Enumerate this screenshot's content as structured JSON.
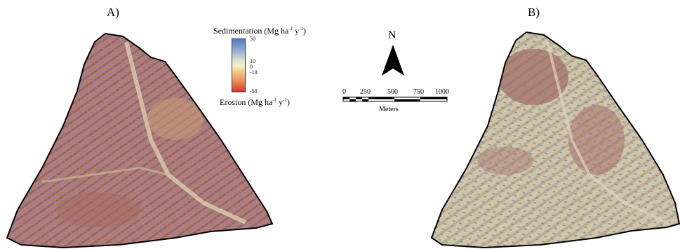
{
  "panels": {
    "a_label": "A)",
    "b_label": "B)"
  },
  "legend": {
    "top_title": "Sedimentation (Mg ha",
    "bottom_title": "Erosion (Mg ha",
    "unit_ha_exp": "-1",
    "unit_y": " y",
    "unit_y_exp": "-1",
    "unit_close": ")",
    "ticks": [
      "50",
      "10",
      "0",
      "-10",
      "-50"
    ],
    "colors": {
      "sedimentation": "#5479c4",
      "neutral": "#f6f3c8",
      "erosion": "#d63a2a"
    }
  },
  "north": {
    "label": "N"
  },
  "scale": {
    "ticks": [
      "0",
      "250",
      "500",
      "750",
      "1000"
    ],
    "units": "Meters"
  }
}
